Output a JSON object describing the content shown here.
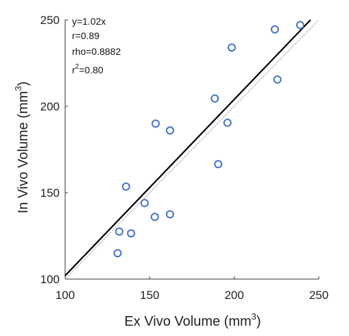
{
  "chart_data": {
    "type": "scatter",
    "xlabel": "Ex Vivo Volume (mm",
    "xlabel_sup": "3",
    "xlabel_close": ")",
    "ylabel": "In Vivo Volume (mm",
    "ylabel_sup": "3",
    "ylabel_close": ")",
    "xlim": [
      100,
      250
    ],
    "ylim": [
      100,
      250
    ],
    "xticks": [
      100,
      150,
      200,
      250
    ],
    "yticks": [
      100,
      150,
      200,
      250
    ],
    "grid": false,
    "legend": null,
    "annotations": {
      "line1": "y=1.02x",
      "line2": "r=0.89",
      "line3": "rho=0.8882",
      "line4_prefix": "r",
      "line4_sup": "2",
      "line4_rest": "=0.80"
    },
    "fit_line": {
      "slope": 1.02,
      "intercept": 0
    },
    "identity_line": {
      "slope": 1,
      "intercept": 0,
      "style": "dotted"
    },
    "points": [
      [
        131,
        115
      ],
      [
        132,
        127.5
      ],
      [
        136,
        153.5
      ],
      [
        139,
        126.5
      ],
      [
        147,
        144
      ],
      [
        153,
        136
      ],
      [
        153.5,
        190
      ],
      [
        162,
        186
      ],
      [
        162,
        137.5
      ],
      [
        188.5,
        204.5
      ],
      [
        190.5,
        166.5
      ],
      [
        196,
        190.5
      ],
      [
        198.5,
        234
      ],
      [
        224,
        244.5
      ],
      [
        225.5,
        215.5
      ],
      [
        239,
        247
      ]
    ],
    "colors": {
      "points": "#4472C4",
      "fit": "#000000",
      "identity": "#888888"
    }
  }
}
